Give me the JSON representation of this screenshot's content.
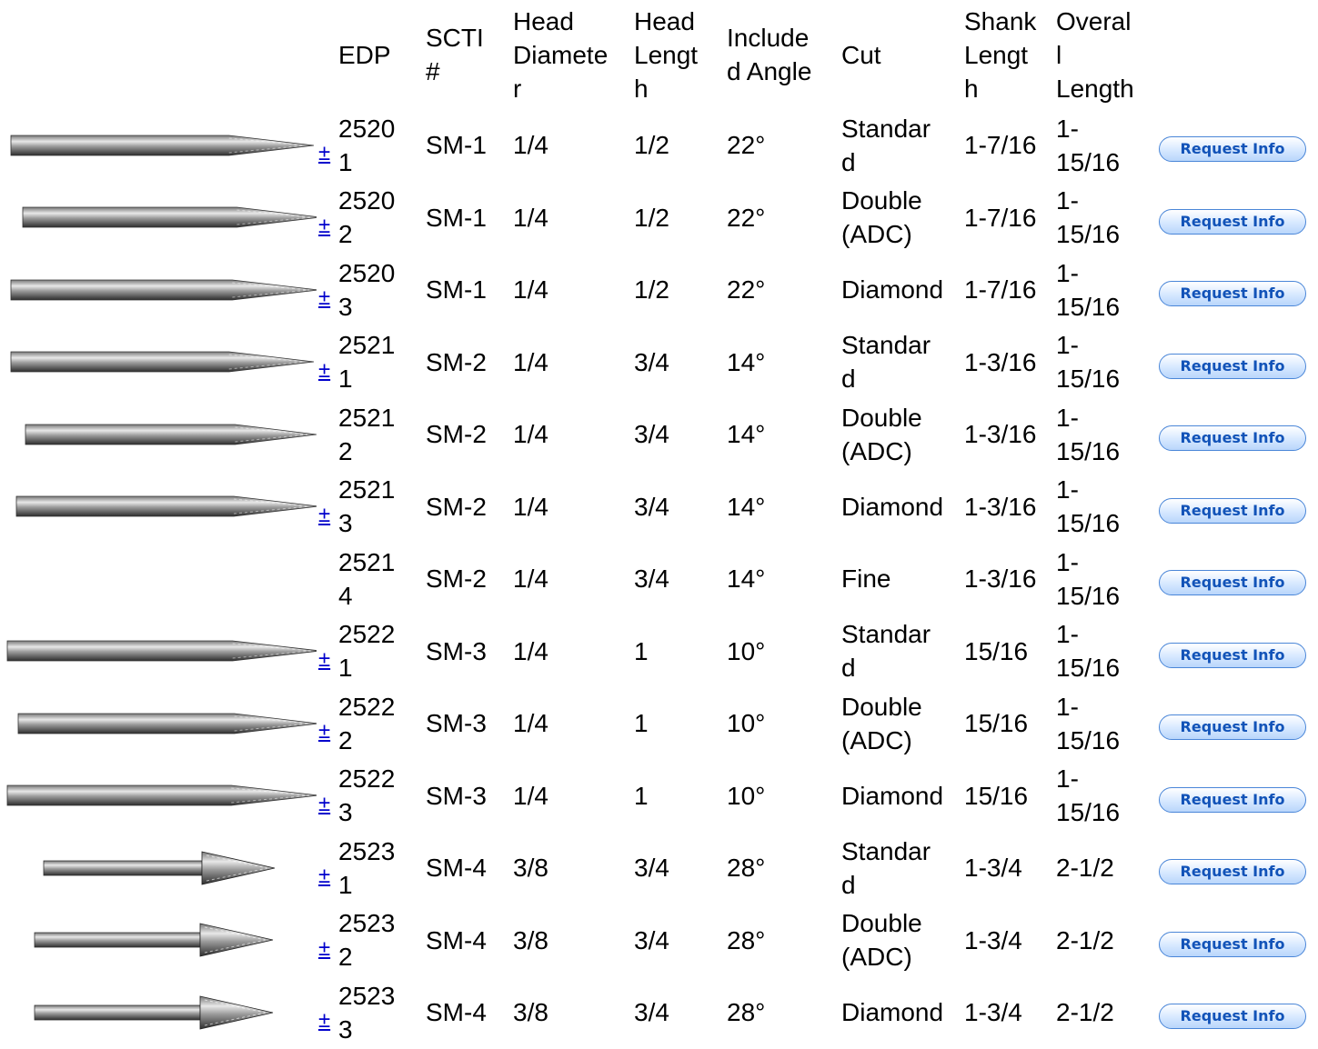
{
  "table": {
    "headers": [
      "EDP",
      "SCTI #",
      "Head Diameter",
      "Head Length",
      "Included Angle",
      "Cut",
      "Shank Length",
      "Overall Length"
    ],
    "rows": [
      [
        "25201",
        "SM-1",
        "1/4",
        "1/2",
        "22°",
        "Standard",
        "1-7/16",
        "1-15/16"
      ],
      [
        "25202",
        "SM-1",
        "1/4",
        "1/2",
        "22°",
        "Double (ADC)",
        "1-7/16",
        "1-15/16"
      ],
      [
        "25203",
        "SM-1",
        "1/4",
        "1/2",
        "22°",
        "Diamond",
        "1-7/16",
        "1-15/16"
      ],
      [
        "25211",
        "SM-2",
        "1/4",
        "3/4",
        "14°",
        "Standard",
        "1-3/16",
        "1-15/16"
      ],
      [
        "25212",
        "SM-2",
        "1/4",
        "3/4",
        "14°",
        "Double (ADC)",
        "1-3/16",
        "1-15/16"
      ],
      [
        "25213",
        "SM-2",
        "1/4",
        "3/4",
        "14°",
        "Diamond",
        "1-3/16",
        "1-15/16"
      ],
      [
        "25214",
        "SM-2",
        "1/4",
        "3/4",
        "14°",
        "Fine",
        "1-3/16",
        "1-15/16"
      ],
      [
        "25221",
        "SM-3",
        "1/4",
        "1",
        "10°",
        "Standard",
        "15/16",
        "1-15/16"
      ],
      [
        "25222",
        "SM-3",
        "1/4",
        "1",
        "10°",
        "Double (ADC)",
        "15/16",
        "1-15/16"
      ],
      [
        "25223",
        "SM-3",
        "1/4",
        "1",
        "10°",
        "Diamond",
        "15/16",
        "1-15/16"
      ],
      [
        "25231",
        "SM-4",
        "3/8",
        "3/4",
        "28°",
        "Standard",
        "1-3/4",
        "2-1/2"
      ],
      [
        "25232",
        "SM-4",
        "3/8",
        "3/4",
        "28°",
        "Double (ADC)",
        "1-3/4",
        "2-1/2"
      ],
      [
        "25233",
        "SM-4",
        "3/8",
        "3/4",
        "28°",
        "Diamond",
        "1-3/4",
        "2-1/2"
      ]
    ],
    "toggle_label": "±",
    "button_label": "Request Info"
  }
}
